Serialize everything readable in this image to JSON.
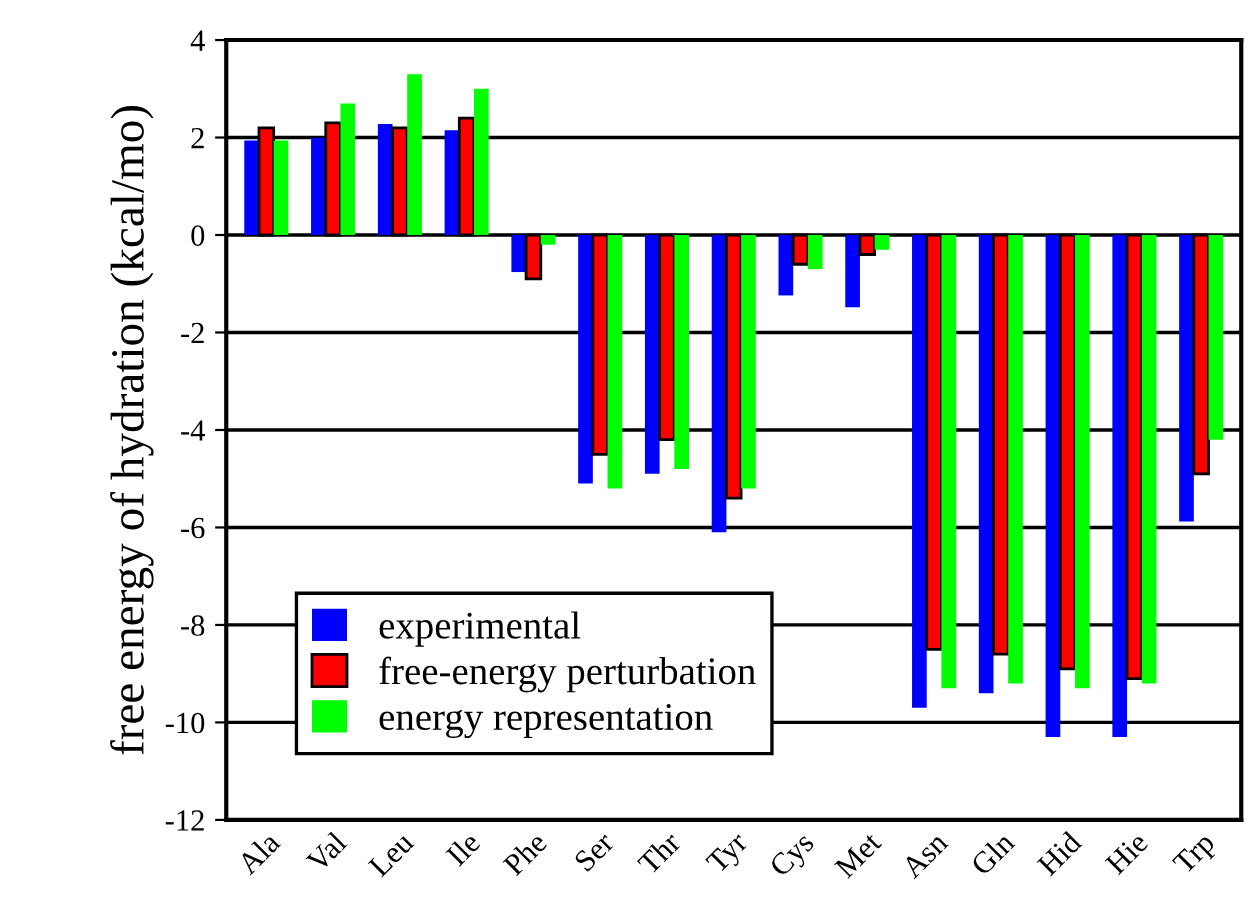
{
  "chart_data": {
    "type": "bar",
    "ylabel": "free energy of hydration (kcal/mo)",
    "categories": [
      "Ala",
      "Val",
      "Leu",
      "Ile",
      "Phe",
      "Ser",
      "Thr",
      "Tyr",
      "Cys",
      "Met",
      "Asn",
      "Gln",
      "Hid",
      "Hie",
      "Trp"
    ],
    "series": [
      {
        "name": "experimental",
        "color": "#0000ff",
        "values": [
          1.94,
          1.99,
          2.28,
          2.15,
          -0.76,
          -5.1,
          -4.9,
          -6.1,
          -1.24,
          -1.48,
          -9.7,
          -9.4,
          -10.3,
          -10.3,
          -5.88
        ]
      },
      {
        "name": "free-energy perturbation",
        "color": "#ff0000",
        "values": [
          2.2,
          2.3,
          2.2,
          2.4,
          -0.9,
          -4.5,
          -4.2,
          -5.4,
          -0.6,
          -0.4,
          -8.5,
          -8.6,
          -8.9,
          -9.1,
          -4.9
        ]
      },
      {
        "name": "energy representation",
        "color": "#00ff00",
        "values": [
          1.94,
          2.7,
          3.3,
          3.0,
          -0.2,
          -5.2,
          -4.8,
          -5.2,
          -0.7,
          -0.3,
          -9.3,
          -9.2,
          -9.3,
          -9.2,
          -4.2
        ]
      }
    ],
    "ylim": [
      -12,
      4
    ],
    "yticks": [
      {
        "value": -12,
        "label": "-12"
      },
      {
        "value": -10,
        "label": "-10"
      },
      {
        "value": -8,
        "label": "-8"
      },
      {
        "value": -6,
        "label": "-6"
      },
      {
        "value": -4,
        "label": "-4"
      },
      {
        "value": -2,
        "label": "-2"
      },
      0,
      2,
      4
    ],
    "grid": "y",
    "legend": "bottom left"
  }
}
